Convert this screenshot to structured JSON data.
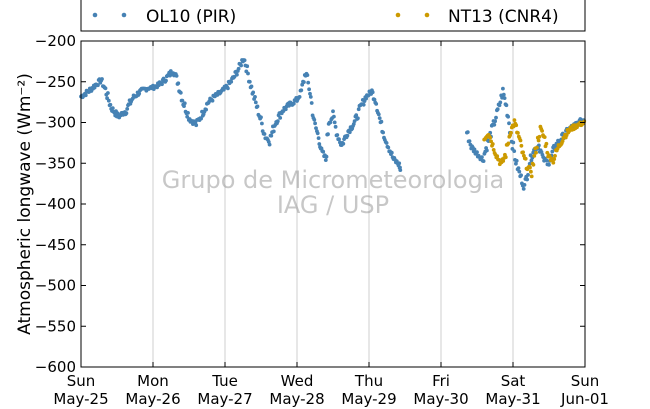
{
  "chart_data": {
    "type": "scatter",
    "ylabel": "Atmospheric longwave (Wm⁻²)",
    "ylim": [
      -600,
      -200
    ],
    "yticks": [
      "-200",
      "-250",
      "-300",
      "-350",
      "-400",
      "-450",
      "-500",
      "-550",
      "-600"
    ],
    "xlim_days": [
      0,
      7
    ],
    "xticks": [
      {
        "day": "Sun",
        "date": "May-25"
      },
      {
        "day": "Mon",
        "date": "May-26"
      },
      {
        "day": "Tue",
        "date": "May-27"
      },
      {
        "day": "Wed",
        "date": "May-28"
      },
      {
        "day": "Thu",
        "date": "May-29"
      },
      {
        "day": "Fri",
        "date": "May-30"
      },
      {
        "day": "Sat",
        "date": "May-31"
      },
      {
        "day": "Sun",
        "date": "Jun-01"
      }
    ],
    "grid": "vertical",
    "legend_position": "top",
    "watermark": [
      "Grupo de Micrometeorologia",
      "IAG / USP"
    ],
    "series": [
      {
        "name": "OL10 (PIR)",
        "color": "#4682b4",
        "segments": [
          [
            [
              0.0,
              -268
            ],
            [
              0.1,
              -262
            ],
            [
              0.2,
              -254
            ],
            [
              0.28,
              -248
            ],
            [
              0.34,
              -260
            ],
            [
              0.42,
              -282
            ],
            [
              0.52,
              -293
            ],
            [
              0.62,
              -286
            ],
            [
              0.72,
              -270
            ],
            [
              0.82,
              -262
            ],
            [
              0.92,
              -258
            ],
            [
              1.0,
              -257
            ],
            [
              1.08,
              -254
            ],
            [
              1.18,
              -246
            ],
            [
              1.28,
              -236
            ],
            [
              1.34,
              -248
            ],
            [
              1.42,
              -275
            ],
            [
              1.52,
              -297
            ],
            [
              1.6,
              -302
            ],
            [
              1.68,
              -290
            ],
            [
              1.76,
              -276
            ],
            [
              1.86,
              -268
            ],
            [
              1.96,
              -262
            ],
            [
              2.04,
              -255
            ],
            [
              2.12,
              -245
            ],
            [
              2.2,
              -232
            ],
            [
              2.26,
              -220
            ],
            [
              2.32,
              -240
            ],
            [
              2.38,
              -262
            ],
            [
              2.44,
              -280
            ],
            [
              2.5,
              -298
            ],
            [
              2.56,
              -318
            ],
            [
              2.62,
              -322
            ],
            [
              2.7,
              -300
            ],
            [
              2.8,
              -285
            ],
            [
              2.9,
              -278
            ],
            [
              3.0,
              -272
            ],
            [
              3.06,
              -262
            ],
            [
              3.12,
              -238
            ],
            [
              3.18,
              -262
            ],
            [
              3.24,
              -300
            ],
            [
              3.3,
              -318
            ],
            [
              3.34,
              -335
            ],
            [
              3.4,
              -345
            ],
            [
              3.44,
              -300
            ],
            [
              3.5,
              -292
            ],
            [
              3.56,
              -315
            ],
            [
              3.62,
              -328
            ],
            [
              3.7,
              -312
            ],
            [
              3.8,
              -300
            ],
            [
              3.88,
              -282
            ],
            [
              3.96,
              -268
            ],
            [
              4.04,
              -262
            ],
            [
              4.1,
              -275
            ],
            [
              4.16,
              -300
            ],
            [
              4.22,
              -318
            ],
            [
              4.28,
              -332
            ],
            [
              4.34,
              -345
            ],
            [
              4.42,
              -352
            ],
            [
              4.44,
              -360
            ]
          ],
          [
            [
              5.36,
              -312
            ],
            [
              5.42,
              -330
            ],
            [
              5.5,
              -338
            ],
            [
              5.58,
              -345
            ],
            [
              5.66,
              -322
            ],
            [
              5.74,
              -300
            ],
            [
              5.8,
              -282
            ],
            [
              5.86,
              -262
            ],
            [
              5.92,
              -285
            ],
            [
              5.98,
              -320
            ],
            [
              6.04,
              -348
            ],
            [
              6.1,
              -365
            ],
            [
              6.16,
              -380
            ],
            [
              6.22,
              -352
            ],
            [
              6.28,
              -335
            ],
            [
              6.36,
              -328
            ],
            [
              6.42,
              -345
            ],
            [
              6.5,
              -350
            ],
            [
              6.58,
              -330
            ],
            [
              6.68,
              -318
            ],
            [
              6.78,
              -308
            ],
            [
              6.88,
              -302
            ],
            [
              7.0,
              -295
            ]
          ]
        ]
      },
      {
        "name": "NT13 (CNR4)",
        "color": "#cc9a00",
        "segments": [
          [
            [
              5.6,
              -320
            ],
            [
              5.66,
              -312
            ],
            [
              5.72,
              -328
            ],
            [
              5.78,
              -342
            ],
            [
              5.84,
              -352
            ],
            [
              5.9,
              -338
            ],
            [
              5.96,
              -312
            ],
            [
              6.02,
              -300
            ],
            [
              6.08,
              -318
            ],
            [
              6.14,
              -340
            ],
            [
              6.2,
              -355
            ],
            [
              6.26,
              -360
            ],
            [
              6.32,
              -332
            ],
            [
              6.38,
              -308
            ],
            [
              6.44,
              -320
            ],
            [
              6.5,
              -342
            ],
            [
              6.56,
              -346
            ],
            [
              6.62,
              -332
            ],
            [
              6.7,
              -318
            ],
            [
              6.8,
              -308
            ],
            [
              6.9,
              -303
            ],
            [
              7.0,
              -300
            ]
          ]
        ]
      }
    ]
  }
}
